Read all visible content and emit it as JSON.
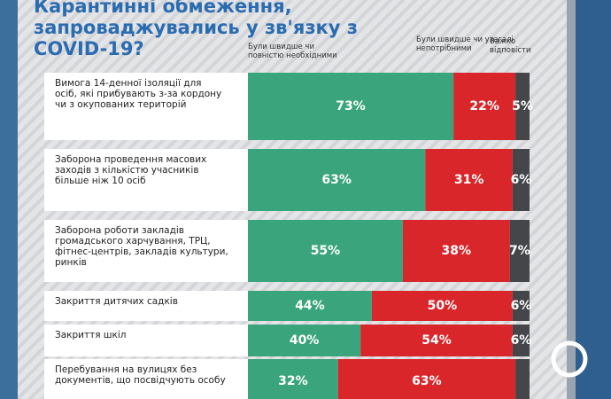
{
  "chart_data": {
    "type": "stacked_bar_horizontal",
    "title": "Карантинні обмеження, запроваджувались у зв'язку з COVID-19?",
    "categories": [
      "Вимога 14-денної ізоляції для осіб, які прибувають з-за кордону чи з окупованих територій",
      "Заборона проведення масових заходів з кількістю учасників більше ніж 10 осіб",
      "Заборона роботи закладів громадського харчування, ТРЦ, фітнес-центрів, закладів культури, ринків",
      "Закриття дитячих садків",
      "Закриття шкіл",
      "Перебування на вулицях без документів, що посвідчують особу"
    ],
    "series": [
      {
        "name": "Були швидше чи повністю необхідними",
        "color": "#3aa57c",
        "values": [
          73,
          63,
          55,
          44,
          40,
          32
        ],
        "value_labels": [
          "73%",
          "63%",
          "55%",
          "44%",
          "40%",
          "32%"
        ]
      },
      {
        "name": "Були швидше чи узагалі непотрібними",
        "color": "#d9262b",
        "values": [
          22,
          31,
          38,
          50,
          54,
          63
        ],
        "value_labels": [
          "22%",
          "31%",
          "38%",
          "50%",
          "54%",
          "63%"
        ]
      },
      {
        "name": "Важко відповісти",
        "color": "#454649",
        "values": [
          5,
          6,
          7,
          6,
          6,
          5
        ],
        "value_labels": [
          "5%",
          "6%",
          "7%",
          "6%",
          "6%",
          null
        ]
      }
    ],
    "xlim": [
      0,
      100
    ]
  }
}
